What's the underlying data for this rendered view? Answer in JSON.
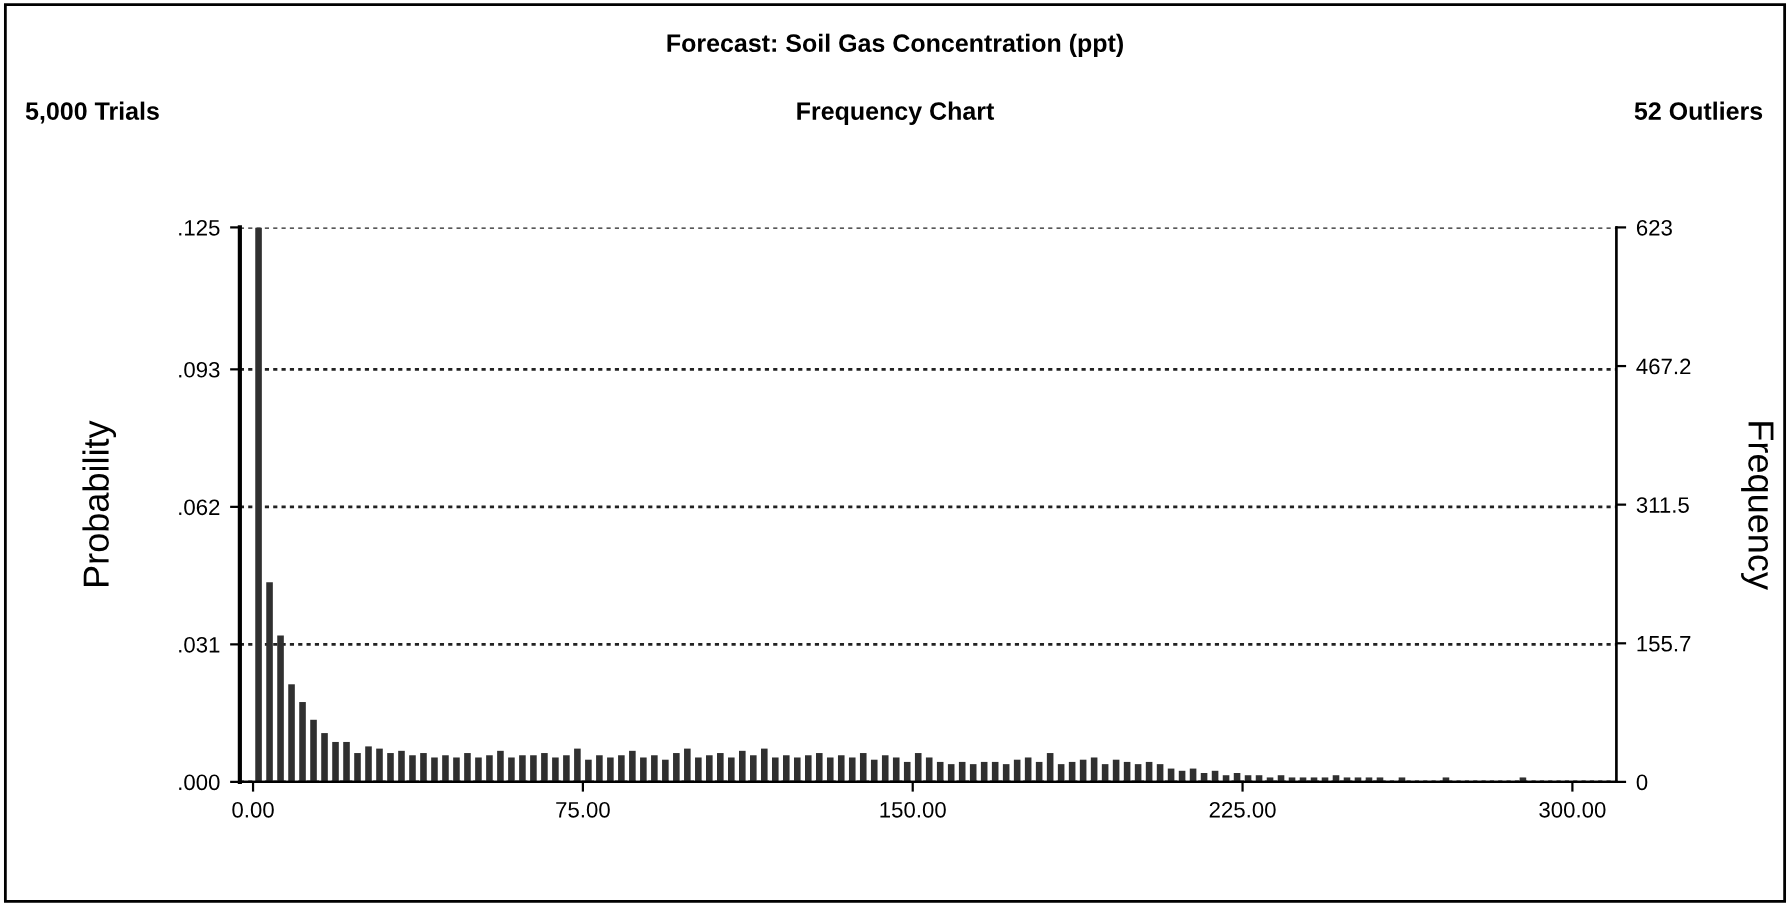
{
  "chart_data": {
    "type": "histogram",
    "title": "Forecast: Soil Gas Concentration (ppt)",
    "subtitle": "Frequency Chart",
    "annotations": [
      "5,000 Trials",
      "52 Outliers"
    ],
    "ylabel": "Probability",
    "y2label": "Frequency",
    "color": "#303030",
    "bins": [
      0,
      2.5,
      5,
      7.5,
      10,
      12.5,
      15,
      17.5,
      20,
      22.5,
      25,
      27.5,
      30,
      32.5,
      35,
      37.5,
      40,
      42.5,
      45,
      47.5,
      50,
      52.5,
      55,
      57.5,
      60,
      62.5,
      65,
      67.5,
      70,
      72.5,
      75,
      77.5,
      80,
      82.5,
      85,
      87.5,
      90,
      92.5,
      95,
      97.5,
      100,
      102.5,
      105,
      107.5,
      110,
      112.5,
      115,
      117.5,
      120,
      122.5,
      125,
      127.5,
      130,
      132.5,
      135,
      137.5,
      140,
      142.5,
      145,
      147.5,
      150,
      152.5,
      155,
      157.5,
      160,
      162.5,
      165,
      167.5,
      170,
      172.5,
      175,
      177.5,
      180,
      182.5,
      185,
      187.5,
      190,
      192.5,
      195,
      197.5,
      200,
      202.5,
      205,
      207.5,
      210,
      212.5,
      215,
      217.5,
      220,
      222.5,
      225,
      227.5,
      230,
      232.5,
      235,
      237.5,
      240,
      242.5,
      245,
      247.5,
      250,
      252.5,
      255,
      257.5,
      260,
      262.5,
      265,
      267.5,
      270,
      272.5,
      275,
      277.5,
      280,
      282.5,
      285,
      287.5,
      290,
      292.5,
      295,
      297.5,
      300
    ],
    "values": [
      0.125,
      0.045,
      0.033,
      0.022,
      0.018,
      0.014,
      0.011,
      0.009,
      0.009,
      0.0065,
      0.008,
      0.0075,
      0.0065,
      0.007,
      0.006,
      0.0065,
      0.0055,
      0.006,
      0.0055,
      0.0065,
      0.0055,
      0.006,
      0.007,
      0.0055,
      0.006,
      0.006,
      0.0065,
      0.0055,
      0.006,
      0.0075,
      0.005,
      0.006,
      0.0055,
      0.006,
      0.007,
      0.0055,
      0.006,
      0.005,
      0.0065,
      0.0075,
      0.0055,
      0.006,
      0.0065,
      0.0055,
      0.007,
      0.006,
      0.0075,
      0.0055,
      0.006,
      0.0055,
      0.006,
      0.0065,
      0.0055,
      0.006,
      0.0055,
      0.0065,
      0.005,
      0.006,
      0.0055,
      0.0045,
      0.0065,
      0.0055,
      0.0045,
      0.004,
      0.0045,
      0.004,
      0.0045,
      0.0045,
      0.004,
      0.005,
      0.0055,
      0.0045,
      0.0065,
      0.004,
      0.0045,
      0.005,
      0.0055,
      0.004,
      0.005,
      0.0045,
      0.004,
      0.0045,
      0.004,
      0.003,
      0.0025,
      0.003,
      0.002,
      0.0025,
      0.0015,
      0.002,
      0.0015,
      0.0015,
      0.001,
      0.0015,
      0.001,
      0.001,
      0.001,
      0.001,
      0.0015,
      0.001,
      0.001,
      0.001,
      0.001,
      0,
      0.001,
      0,
      0,
      0,
      0.001,
      0,
      0,
      0,
      0,
      0,
      0,
      0.001,
      0,
      0,
      0,
      0
    ],
    "xlim": [
      -3,
      310
    ],
    "xticks": [
      {
        "value": 0,
        "label": "0.00"
      },
      {
        "value": 75,
        "label": "75.00"
      },
      {
        "value": 150,
        "label": "150.00"
      },
      {
        "value": 225,
        "label": "225.00"
      },
      {
        "value": 300,
        "label": "300.00"
      }
    ],
    "ylim": [
      0,
      0.125
    ],
    "yticks": [
      {
        "value": 0,
        "label": ".000"
      },
      {
        "value": 0.031,
        "label": ".031"
      },
      {
        "value": 0.062,
        "label": ".062"
      },
      {
        "value": 0.093,
        "label": ".093"
      },
      {
        "value": 0.125,
        "label": ".125"
      }
    ],
    "y2lim": [
      0,
      623
    ],
    "y2ticks": [
      0,
      155.7,
      311.5,
      467.2,
      623
    ],
    "grid": "y"
  }
}
